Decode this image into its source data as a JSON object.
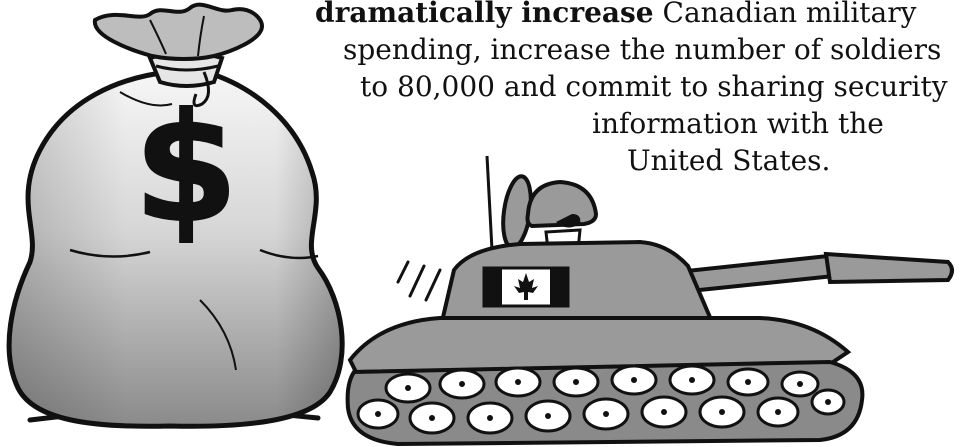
{
  "caption": {
    "line1_bold": "dramatically increase",
    "line1_rest": " Canadian military",
    "line2": "spending, increase the number of soldiers",
    "line3": "to 80,000 and commit to sharing security",
    "line4": "information with the",
    "line5": "United States."
  },
  "illustration": {
    "money_bag_symbol": "$",
    "money_bag_icon": "money-bag-icon",
    "tank_icon": "tank-icon",
    "flag_icon": "canadian-flag-icon",
    "colors": {
      "outline": "#111111",
      "bag_light": "#f4f4f4",
      "bag_dark": "#8d8d8d",
      "tank_gray": "#9a9a9a",
      "tread_gray": "#8a8a8a",
      "flag_red": "#111111"
    }
  }
}
